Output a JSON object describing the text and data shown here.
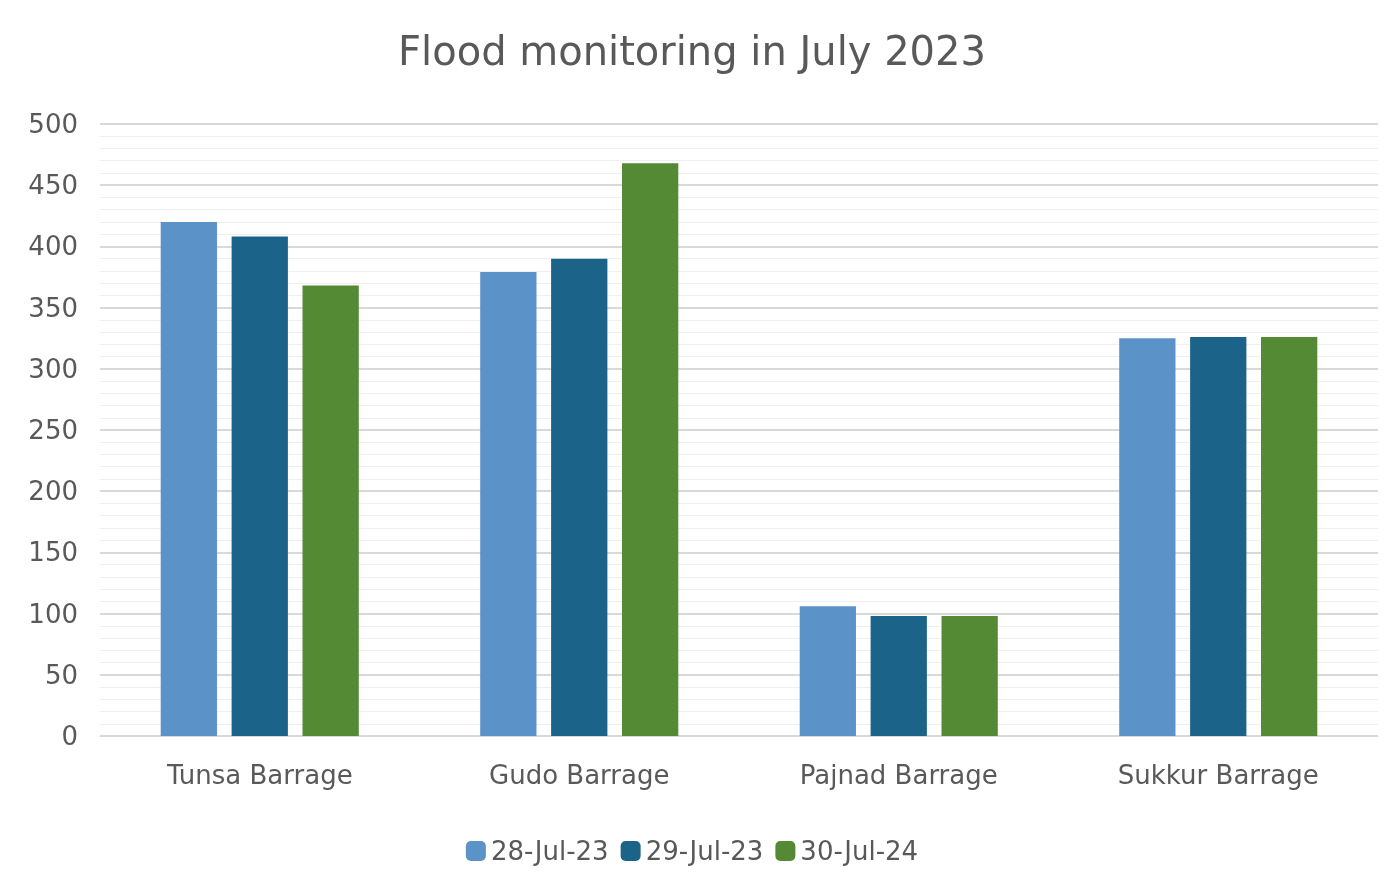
{
  "chart_data": {
    "type": "bar",
    "title": "Flood monitoring in July 2023",
    "categories": [
      "Tunsa Barrage",
      "Gudo Barrage",
      "Pajnad Barrage",
      "Sukkur Barrage"
    ],
    "series": [
      {
        "name": "28-Jul-23",
        "color": "#5b93c9",
        "values": [
          420,
          379,
          106,
          325
        ]
      },
      {
        "name": "29-Jul-23",
        "color": "#1b6389",
        "values": [
          408,
          390,
          98,
          326
        ]
      },
      {
        "name": "30-Jul-24",
        "color": "#538a33",
        "values": [
          368,
          468,
          98,
          326
        ]
      }
    ],
    "ylim": [
      0,
      500
    ],
    "yticks": [
      0,
      50,
      100,
      150,
      200,
      250,
      300,
      350,
      400,
      450,
      500
    ],
    "grid": true,
    "legend": "bottom"
  }
}
